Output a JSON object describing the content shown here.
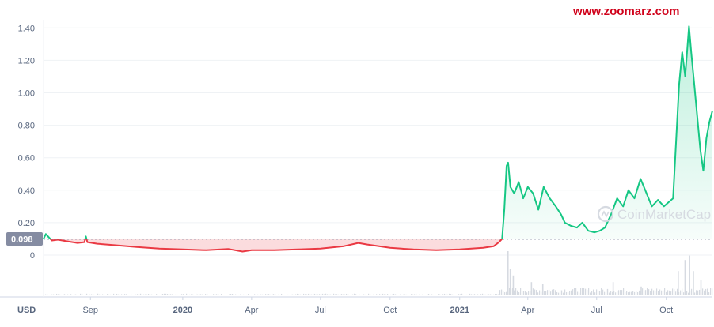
{
  "watermark": "www.zoomarz.com",
  "brand": "CoinMarketCap",
  "currency_label": "USD",
  "colors": {
    "up": "#16c784",
    "down": "#ea3943",
    "grid": "#eff2f5",
    "axis_text": "#58667e",
    "badge": "#858ca2",
    "volume": "#d6dae1"
  },
  "chart_data": {
    "type": "line",
    "ylim": [
      0,
      1.45
    ],
    "yticks": [
      0,
      0.2,
      0.4,
      0.6,
      0.8,
      1.0,
      1.2,
      1.4
    ],
    "ytick_labels": [
      "0",
      "0.20",
      "0.40",
      "0.60",
      "0.80",
      "1.00",
      "1.20",
      "1.40"
    ],
    "reference_value": 0.098,
    "reference_label": "0.098",
    "xlim": [
      "2019-07-01",
      "2021-12-01"
    ],
    "xticks": [
      {
        "date": "2019-09-01",
        "label": "Sep",
        "bold": false
      },
      {
        "date": "2020-01-01",
        "label": "2020",
        "bold": true
      },
      {
        "date": "2020-04-01",
        "label": "Apr",
        "bold": false
      },
      {
        "date": "2020-07-01",
        "label": "Jul",
        "bold": false
      },
      {
        "date": "2020-10-01",
        "label": "Oct",
        "bold": false
      },
      {
        "date": "2021-01-01",
        "label": "2021",
        "bold": true
      },
      {
        "date": "2021-04-01",
        "label": "Apr",
        "bold": false
      },
      {
        "date": "2021-07-01",
        "label": "Jul",
        "bold": false
      },
      {
        "date": "2021-10-01",
        "label": "Oct",
        "bold": false
      }
    ],
    "series": [
      {
        "color_below": "#ea3943",
        "color_above": "#16c784",
        "points": [
          [
            "2019-07-01",
            0.1
          ],
          [
            "2019-07-04",
            0.13
          ],
          [
            "2019-07-08",
            0.11
          ],
          [
            "2019-07-12",
            0.09
          ],
          [
            "2019-07-20",
            0.095
          ],
          [
            "2019-08-01",
            0.085
          ],
          [
            "2019-08-15",
            0.075
          ],
          [
            "2019-08-24",
            0.08
          ],
          [
            "2019-08-26",
            0.115
          ],
          [
            "2019-08-28",
            0.08
          ],
          [
            "2019-09-10",
            0.07
          ],
          [
            "2019-10-01",
            0.062
          ],
          [
            "2019-11-01",
            0.05
          ],
          [
            "2019-12-01",
            0.04
          ],
          [
            "2020-01-01",
            0.035
          ],
          [
            "2020-02-01",
            0.03
          ],
          [
            "2020-03-01",
            0.038
          ],
          [
            "2020-03-20",
            0.022
          ],
          [
            "2020-04-01",
            0.03
          ],
          [
            "2020-05-01",
            0.03
          ],
          [
            "2020-06-01",
            0.035
          ],
          [
            "2020-07-01",
            0.04
          ],
          [
            "2020-08-01",
            0.055
          ],
          [
            "2020-08-20",
            0.075
          ],
          [
            "2020-09-01",
            0.065
          ],
          [
            "2020-10-01",
            0.045
          ],
          [
            "2020-11-01",
            0.035
          ],
          [
            "2020-12-01",
            0.03
          ],
          [
            "2021-01-01",
            0.035
          ],
          [
            "2021-02-01",
            0.045
          ],
          [
            "2021-02-15",
            0.055
          ],
          [
            "2021-02-22",
            0.08
          ],
          [
            "2021-02-26",
            0.1
          ],
          [
            "2021-03-01",
            0.28
          ],
          [
            "2021-03-04",
            0.55
          ],
          [
            "2021-03-06",
            0.57
          ],
          [
            "2021-03-09",
            0.42
          ],
          [
            "2021-03-14",
            0.38
          ],
          [
            "2021-03-20",
            0.45
          ],
          [
            "2021-03-26",
            0.35
          ],
          [
            "2021-04-01",
            0.42
          ],
          [
            "2021-04-08",
            0.38
          ],
          [
            "2021-04-15",
            0.28
          ],
          [
            "2021-04-22",
            0.42
          ],
          [
            "2021-04-30",
            0.35
          ],
          [
            "2021-05-08",
            0.3
          ],
          [
            "2021-05-15",
            0.25
          ],
          [
            "2021-05-20",
            0.2
          ],
          [
            "2021-05-28",
            0.18
          ],
          [
            "2021-06-05",
            0.17
          ],
          [
            "2021-06-12",
            0.2
          ],
          [
            "2021-06-20",
            0.15
          ],
          [
            "2021-06-28",
            0.14
          ],
          [
            "2021-07-05",
            0.15
          ],
          [
            "2021-07-12",
            0.17
          ],
          [
            "2021-07-20",
            0.25
          ],
          [
            "2021-07-28",
            0.35
          ],
          [
            "2021-08-05",
            0.3
          ],
          [
            "2021-08-12",
            0.4
          ],
          [
            "2021-08-20",
            0.35
          ],
          [
            "2021-08-28",
            0.47
          ],
          [
            "2021-09-05",
            0.38
          ],
          [
            "2021-09-12",
            0.3
          ],
          [
            "2021-09-20",
            0.34
          ],
          [
            "2021-09-28",
            0.3
          ],
          [
            "2021-10-05",
            0.33
          ],
          [
            "2021-10-10",
            0.35
          ],
          [
            "2021-10-14",
            0.7
          ],
          [
            "2021-10-18",
            1.05
          ],
          [
            "2021-10-22",
            1.25
          ],
          [
            "2021-10-26",
            1.1
          ],
          [
            "2021-10-31",
            1.41
          ],
          [
            "2021-11-03",
            1.25
          ],
          [
            "2021-11-07",
            1.05
          ],
          [
            "2021-11-11",
            0.85
          ],
          [
            "2021-11-15",
            0.65
          ],
          [
            "2021-11-19",
            0.52
          ],
          [
            "2021-11-23",
            0.72
          ],
          [
            "2021-11-27",
            0.82
          ],
          [
            "2021-12-01",
            0.89
          ]
        ]
      }
    ],
    "volume": {
      "spikes": [
        [
          "2021-03-05",
          1.0
        ],
        [
          "2021-03-08",
          0.6
        ],
        [
          "2021-03-12",
          0.45
        ],
        [
          "2021-04-05",
          0.3
        ],
        [
          "2021-04-20",
          0.25
        ],
        [
          "2021-07-22",
          0.3
        ],
        [
          "2021-08-28",
          0.2
        ],
        [
          "2021-10-16",
          0.55
        ],
        [
          "2021-10-25",
          0.8
        ],
        [
          "2021-10-31",
          0.9
        ],
        [
          "2021-11-05",
          0.55
        ],
        [
          "2021-11-15",
          0.35
        ]
      ]
    }
  }
}
